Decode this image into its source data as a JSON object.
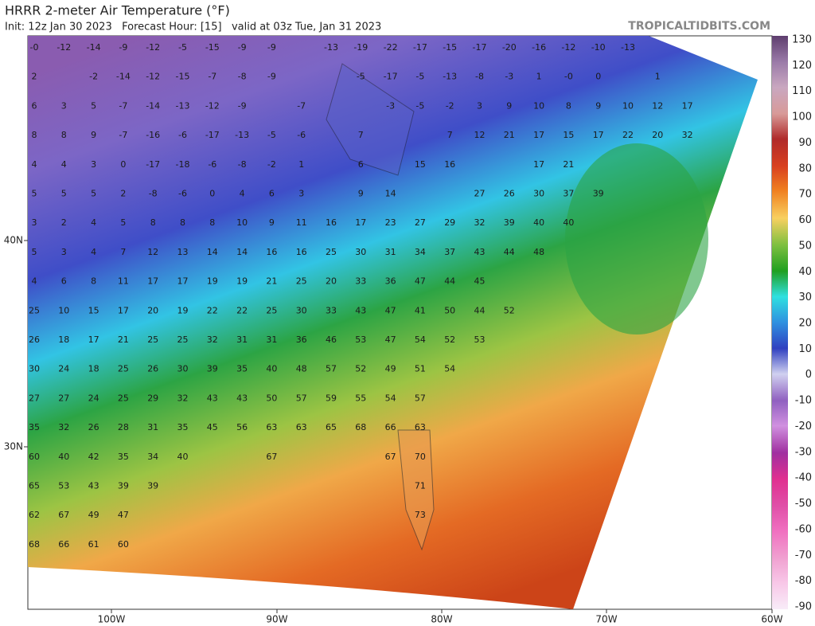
{
  "header": {
    "title": "HRRR 2-meter Air Temperature (°F)",
    "subtitle": "Init: 12z Jan 30 2023   Forecast Hour: [15]   valid at 03z Tue, Jan 31 2023",
    "brand": "TROPICALTIDBITS.COM"
  },
  "map": {
    "x_labels": [
      "100W",
      "90W",
      "80W",
      "70W",
      "60W"
    ],
    "y_labels": [
      "40N",
      "30N"
    ],
    "stations": [
      [
        "-0",
        -12,
        -14,
        -9,
        -12,
        -5,
        -15,
        -9,
        -9,
        -13,
        -19,
        -22,
        -17,
        -15,
        -17,
        -20,
        -16,
        -12,
        -10,
        -13
      ],
      [
        2,
        -2,
        -14,
        -12,
        -15,
        -7,
        -8,
        -9,
        -5,
        -17,
        -5,
        -13,
        -8,
        -3,
        1,
        "-0",
        0,
        1
      ],
      [
        6,
        3,
        5,
        -7,
        -14,
        -13,
        -12,
        -9,
        -7,
        -3,
        -5,
        -2,
        3,
        9,
        10,
        8,
        9,
        10,
        12,
        17
      ],
      [
        8,
        8,
        9,
        -7,
        -16,
        -6,
        -17,
        -13,
        -5,
        -6,
        7,
        7,
        12,
        21,
        17,
        15,
        17,
        22,
        20,
        32
      ],
      [
        4,
        4,
        3,
        0,
        -17,
        -18,
        -6,
        -8,
        -2,
        1,
        6,
        15,
        16,
        17,
        21
      ],
      [
        5,
        5,
        5,
        2,
        -8,
        -6,
        0,
        4,
        6,
        3,
        9,
        14,
        27,
        26,
        30,
        37,
        39
      ],
      [
        3,
        2,
        4,
        5,
        8,
        8,
        8,
        10,
        9,
        11,
        16,
        17,
        23,
        27,
        29,
        32,
        39,
        40,
        40
      ],
      [
        5,
        3,
        4,
        7,
        12,
        13,
        14,
        14,
        16,
        16,
        25,
        30,
        31,
        34,
        37,
        43,
        44,
        48
      ],
      [
        4,
        6,
        8,
        11,
        17,
        17,
        19,
        19,
        21,
        25,
        20,
        33,
        36,
        47,
        44,
        45
      ],
      [
        25,
        10,
        15,
        17,
        20,
        19,
        22,
        22,
        25,
        30,
        33,
        43,
        47,
        41,
        50,
        44,
        52
      ],
      [
        26,
        18,
        17,
        21,
        25,
        25,
        32,
        31,
        31,
        36,
        46,
        53,
        47,
        54,
        52,
        53
      ],
      [
        30,
        24,
        18,
        25,
        26,
        30,
        39,
        35,
        40,
        48,
        57,
        52,
        49,
        51,
        54
      ],
      [
        27,
        27,
        24,
        25,
        29,
        32,
        43,
        43,
        50,
        57,
        59,
        55,
        54,
        57
      ],
      [
        35,
        32,
        26,
        28,
        31,
        35,
        45,
        56,
        63,
        63,
        65,
        68,
        66,
        63
      ],
      [
        60,
        40,
        42,
        35,
        34,
        40,
        67,
        67,
        70
      ],
      [
        65,
        53,
        43,
        39,
        39,
        71
      ],
      [
        62,
        67,
        49,
        47,
        73
      ],
      [
        68,
        66,
        61,
        60
      ]
    ]
  },
  "colorbar": {
    "labels": [
      130,
      120,
      110,
      100,
      90,
      80,
      70,
      60,
      50,
      40,
      30,
      20,
      10,
      0,
      -10,
      -20,
      -30,
      -40,
      -50,
      -60,
      -70,
      -80,
      -90
    ]
  }
}
